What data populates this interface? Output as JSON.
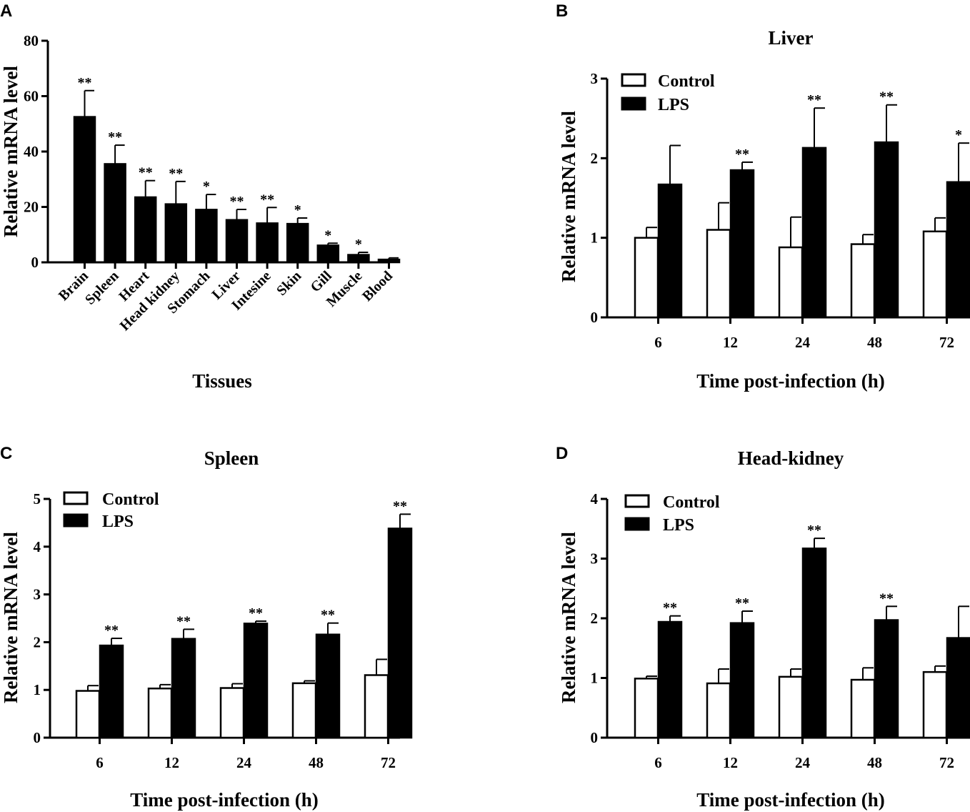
{
  "chart_data": [
    {
      "panel": "A",
      "type": "bar",
      "title": "",
      "xlabel": "Tissues",
      "ylabel": "Relative mRNA  level",
      "ylim": [
        0,
        80
      ],
      "yticks": [
        0,
        20,
        40,
        60,
        80
      ],
      "categories": [
        "Brain",
        "Spleen",
        "Heart",
        "Head kidney",
        "Stomach",
        "Liver",
        "Intesine",
        "Skin",
        "Gill",
        "Muscle",
        "Blood"
      ],
      "series": [
        {
          "name": "",
          "values": [
            52.5,
            35.5,
            23.5,
            21,
            19,
            15.3,
            14.1,
            13.9,
            6.1,
            2.7,
            1
          ],
          "errors": [
            9.5,
            6.8,
            6,
            8.2,
            5.5,
            3.8,
            5.7,
            2.1,
            0.8,
            0.9,
            0.6
          ],
          "significance": [
            "**",
            "**",
            "**",
            "**",
            "*",
            "**",
            "**",
            "*",
            "*",
            "*",
            ""
          ]
        }
      ]
    },
    {
      "panel": "B",
      "type": "bar",
      "title": "Liver",
      "xlabel": "Time post-infection (h)",
      "ylabel": "Relative mRNA  level",
      "ylim": [
        0,
        3
      ],
      "yticks": [
        0,
        1,
        2,
        3
      ],
      "categories": [
        "6",
        "12",
        "24",
        "48",
        "72"
      ],
      "legend": [
        "Control",
        "LPS"
      ],
      "series": [
        {
          "name": "Control",
          "values": [
            1.0,
            1.1,
            0.88,
            0.92,
            1.08
          ],
          "errors": [
            0.13,
            0.34,
            0.38,
            0.12,
            0.17
          ],
          "significance": [
            "",
            "",
            "",
            "",
            ""
          ]
        },
        {
          "name": "LPS",
          "values": [
            1.67,
            1.85,
            2.13,
            2.2,
            1.7
          ],
          "errors": [
            0.49,
            0.1,
            0.5,
            0.47,
            0.49
          ],
          "significance": [
            "",
            "**",
            "**",
            "**",
            "*"
          ]
        }
      ]
    },
    {
      "panel": "C",
      "type": "bar",
      "title": "Spleen",
      "xlabel": "Time post-infection (h)",
      "ylabel": "Relative mRNA  level",
      "ylim": [
        0,
        5
      ],
      "yticks": [
        0,
        1,
        2,
        3,
        4,
        5
      ],
      "categories": [
        "6",
        "12",
        "24",
        "48",
        "72"
      ],
      "legend": [
        "Control",
        "LPS"
      ],
      "series": [
        {
          "name": "Control",
          "values": [
            0.98,
            1.03,
            1.04,
            1.14,
            1.31
          ],
          "errors": [
            0.11,
            0.08,
            0.09,
            0.05,
            0.33
          ],
          "significance": [
            "",
            "",
            "",
            "",
            ""
          ]
        },
        {
          "name": "LPS",
          "values": [
            1.93,
            2.07,
            2.39,
            2.16,
            4.38
          ],
          "errors": [
            0.15,
            0.2,
            0.05,
            0.24,
            0.3
          ],
          "significance": [
            "**",
            "**",
            "**",
            "**",
            "**"
          ]
        }
      ]
    },
    {
      "panel": "D",
      "type": "bar",
      "title": "Head-kidney",
      "xlabel": "Time post-infection (h)",
      "ylabel": "Relative mRNA  level",
      "ylim": [
        0,
        4
      ],
      "yticks": [
        0,
        1,
        2,
        3,
        4
      ],
      "categories": [
        "6",
        "12",
        "24",
        "48",
        "72"
      ],
      "legend": [
        "Control",
        "LPS"
      ],
      "series": [
        {
          "name": "Control",
          "values": [
            0.99,
            0.91,
            1.02,
            0.97,
            1.1
          ],
          "errors": [
            0.04,
            0.24,
            0.13,
            0.2,
            0.1
          ],
          "significance": [
            "",
            "",
            "",
            "",
            ""
          ]
        },
        {
          "name": "LPS",
          "values": [
            1.94,
            1.92,
            3.17,
            1.97,
            1.67
          ],
          "errors": [
            0.1,
            0.2,
            0.17,
            0.23,
            0.53
          ],
          "significance": [
            "**",
            "**",
            "**",
            "**",
            ""
          ]
        }
      ]
    }
  ]
}
